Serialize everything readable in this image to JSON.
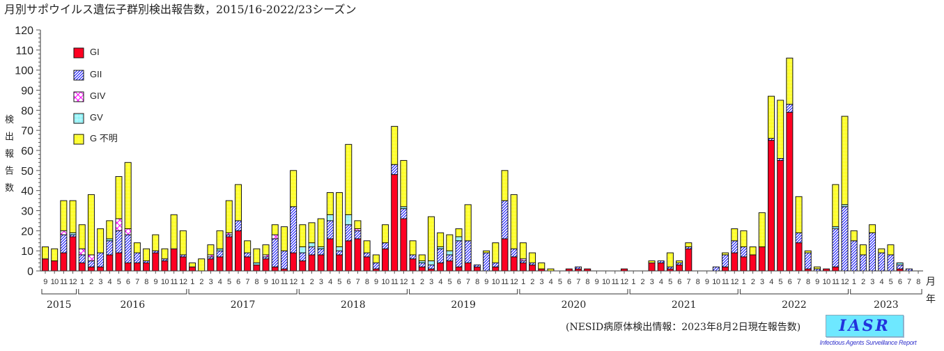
{
  "title": "月別サポウイルス遺伝子群別検出報告数，2015/16-2022/23シーズン",
  "footer": "(NESID病原体検出情報：2023年8月2日現在報告数)",
  "logo": {
    "text": "IASR",
    "subtitle": "Infectious Agents Surveillance Report"
  },
  "chart_data": {
    "type": "bar",
    "stacked": true,
    "title": "月別サポウイルス遺伝子群別検出報告数，2015/16-2022/23シーズン",
    "ylabel": "検出報告数",
    "xlabel_month": "月",
    "xlabel_year": "年",
    "ylim": [
      0,
      120
    ],
    "yticks": [
      "0",
      "10",
      "20",
      "30",
      "40",
      "50",
      "60",
      "70",
      "80",
      "90",
      "100",
      "110",
      "120"
    ],
    "legend_position": "top-left",
    "years": [
      {
        "label": "2015",
        "start": 0,
        "end": 3
      },
      {
        "label": "2016",
        "start": 4,
        "end": 15
      },
      {
        "label": "2017",
        "start": 16,
        "end": 27
      },
      {
        "label": "2018",
        "start": 28,
        "end": 39
      },
      {
        "label": "2019",
        "start": 40,
        "end": 51
      },
      {
        "label": "2020",
        "start": 52,
        "end": 63
      },
      {
        "label": "2021",
        "start": 64,
        "end": 75
      },
      {
        "label": "2022",
        "start": 76,
        "end": 87
      },
      {
        "label": "2023",
        "start": 88,
        "end": 95
      }
    ],
    "categories": [
      "9",
      "10",
      "11",
      "12",
      "1",
      "2",
      "3",
      "4",
      "5",
      "6",
      "7",
      "8",
      "9",
      "10",
      "11",
      "12",
      "1",
      "2",
      "3",
      "4",
      "5",
      "6",
      "7",
      "8",
      "9",
      "10",
      "11",
      "12",
      "1",
      "2",
      "3",
      "4",
      "5",
      "6",
      "7",
      "8",
      "9",
      "10",
      "11",
      "12",
      "1",
      "2",
      "3",
      "4",
      "5",
      "6",
      "7",
      "8",
      "9",
      "10",
      "11",
      "12",
      "1",
      "2",
      "3",
      "4",
      "5",
      "6",
      "7",
      "8",
      "9",
      "10",
      "11",
      "12",
      "1",
      "2",
      "3",
      "4",
      "5",
      "6",
      "7",
      "8",
      "9",
      "10",
      "11",
      "12",
      "1",
      "2",
      "3",
      "4",
      "5",
      "6",
      "7",
      "8",
      "9",
      "10",
      "11",
      "12",
      "1",
      "2",
      "3",
      "4",
      "5",
      "6",
      "7",
      "8"
    ],
    "series": [
      {
        "name": "GI",
        "color": "#ff0022",
        "pattern": "solid",
        "values": [
          6,
          5,
          9,
          17,
          4,
          2,
          2,
          8,
          9,
          4,
          4,
          4,
          9,
          5,
          11,
          7,
          2,
          0,
          6,
          7,
          17,
          20,
          7,
          3,
          6,
          2,
          1,
          9,
          5,
          8,
          8,
          16,
          8,
          15,
          16,
          7,
          1,
          11,
          48,
          26,
          6,
          2,
          1,
          4,
          5,
          2,
          4,
          2,
          0,
          2,
          16,
          7,
          4,
          3,
          1,
          0,
          0,
          1,
          1,
          1,
          0,
          0,
          0,
          1,
          0,
          0,
          4,
          4,
          1,
          3,
          11,
          0,
          0,
          0,
          2,
          9,
          7,
          8,
          12,
          65,
          55,
          79,
          14,
          1,
          0,
          1,
          2,
          0,
          0,
          0,
          0,
          0,
          0,
          1,
          0,
          0
        ]
      },
      {
        "name": "GII",
        "color": "#0000ff",
        "pattern": "hatch",
        "values": [
          0,
          0,
          9,
          1,
          4,
          3,
          7,
          7,
          11,
          14,
          5,
          1,
          1,
          1,
          0,
          1,
          0,
          0,
          1,
          3,
          1,
          5,
          2,
          0,
          1,
          14,
          9,
          23,
          4,
          4,
          3,
          9,
          2,
          8,
          4,
          2,
          3,
          3,
          5,
          5,
          2,
          2,
          2,
          7,
          3,
          13,
          11,
          1,
          9,
          2,
          19,
          4,
          1,
          1,
          0,
          0,
          0,
          0,
          1,
          0,
          0,
          0,
          0,
          0,
          0,
          0,
          0,
          1,
          1,
          1,
          1,
          0,
          0,
          2,
          6,
          6,
          5,
          0,
          0,
          1,
          1,
          4,
          5,
          8,
          1,
          0,
          19,
          32,
          15,
          8,
          19,
          9,
          8,
          2,
          1,
          0
        ]
      },
      {
        "name": "GIV",
        "color": "#ff00ff",
        "pattern": "cross",
        "values": [
          0,
          0,
          2,
          0,
          3,
          3,
          0,
          0,
          6,
          3,
          0,
          0,
          0,
          0,
          0,
          0,
          0,
          0,
          1,
          0,
          1,
          0,
          0,
          0,
          1,
          2,
          0,
          0,
          0,
          0,
          0,
          0,
          0,
          0,
          1,
          0,
          0,
          0,
          0,
          0,
          0,
          0,
          0,
          0,
          0,
          0,
          0,
          0,
          0,
          0,
          0,
          0,
          1,
          0,
          0,
          0,
          0,
          0,
          0,
          0,
          0,
          0,
          0,
          0,
          0,
          0,
          0,
          0,
          0,
          0,
          0,
          0,
          0,
          0,
          0,
          0,
          0,
          0,
          0,
          0,
          0,
          0,
          0,
          0,
          0,
          0,
          0,
          0,
          0,
          0,
          0,
          0,
          0,
          0,
          0,
          0
        ]
      },
      {
        "name": "GV",
        "color": "#00e5ee",
        "pattern": "dots",
        "values": [
          0,
          0,
          0,
          1,
          0,
          0,
          0,
          1,
          0,
          0,
          0,
          0,
          0,
          0,
          0,
          0,
          0,
          0,
          0,
          1,
          0,
          0,
          0,
          1,
          0,
          0,
          0,
          0,
          3,
          2,
          1,
          3,
          2,
          5,
          0,
          0,
          0,
          0,
          0,
          1,
          0,
          1,
          2,
          1,
          2,
          2,
          0,
          0,
          0,
          0,
          0,
          0,
          0,
          0,
          0,
          0,
          0,
          0,
          0,
          0,
          0,
          0,
          0,
          0,
          0,
          0,
          0,
          0,
          0,
          0,
          0,
          0,
          0,
          0,
          0,
          0,
          0,
          0,
          0,
          0,
          0,
          0,
          0,
          0,
          0,
          0,
          1,
          1,
          0,
          0,
          0,
          0,
          0,
          1,
          0,
          0
        ]
      },
      {
        "name": "G 不明",
        "color": "#ffff00",
        "pattern": "dots",
        "values": [
          6,
          6,
          15,
          16,
          12,
          30,
          12,
          9,
          21,
          33,
          5,
          6,
          8,
          5,
          17,
          12,
          2,
          6,
          5,
          9,
          16,
          18,
          6,
          7,
          5,
          5,
          12,
          18,
          11,
          10,
          14,
          11,
          27,
          35,
          4,
          6,
          4,
          9,
          19,
          23,
          7,
          3,
          22,
          7,
          8,
          4,
          18,
          0,
          1,
          10,
          15,
          27,
          8,
          5,
          3,
          1,
          0,
          0,
          0,
          0,
          0,
          0,
          0,
          0,
          0,
          0,
          1,
          0,
          7,
          1,
          2,
          0,
          0,
          0,
          1,
          6,
          8,
          4,
          17,
          21,
          29,
          23,
          18,
          1,
          1,
          0,
          21,
          44,
          5,
          5,
          4,
          2,
          5,
          0,
          0,
          0
        ]
      }
    ]
  }
}
